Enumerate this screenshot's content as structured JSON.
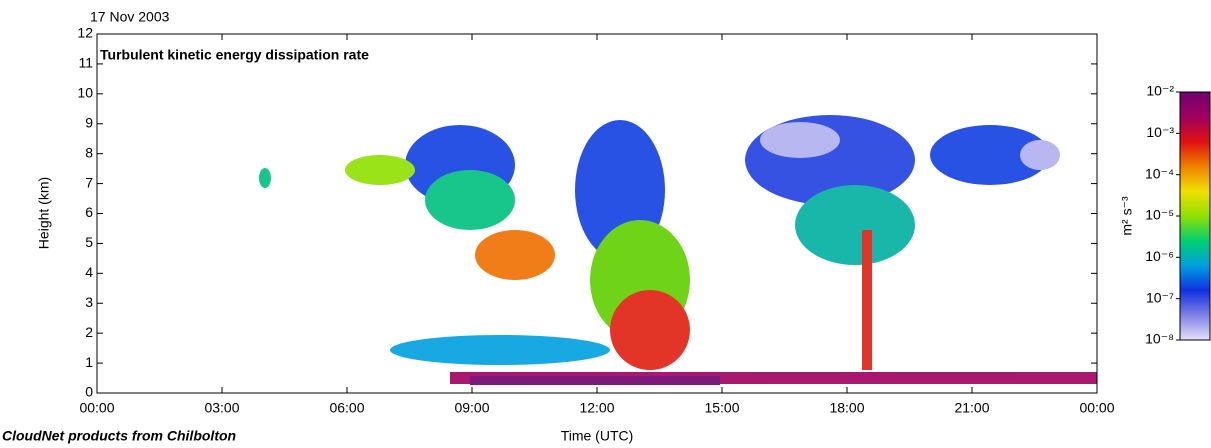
{
  "chart_data": {
    "type": "heatmap",
    "title": "Turbulent kinetic energy dissipation rate",
    "subtitle": "17 Nov 2003",
    "x_label": "Time (UTC)",
    "y_label": "Height (km)",
    "footer": "CloudNet products from Chilbolton",
    "xlim": [
      0,
      24
    ],
    "xticks": [
      {
        "value": 0,
        "label": "00:00"
      },
      {
        "value": 3,
        "label": "03:00"
      },
      {
        "value": 6,
        "label": "06:00"
      },
      {
        "value": 9,
        "label": "09:00"
      },
      {
        "value": 12,
        "label": "12:00"
      },
      {
        "value": 15,
        "label": "15:00"
      },
      {
        "value": 18,
        "label": "18:00"
      },
      {
        "value": 21,
        "label": "21:00"
      },
      {
        "value": 24,
        "label": "00:00"
      }
    ],
    "ylim": [
      0,
      12
    ],
    "yticks": [
      0,
      1,
      2,
      3,
      4,
      5,
      6,
      7,
      8,
      9,
      10,
      11,
      12
    ],
    "colorbar": {
      "label": "m² s⁻³",
      "log_scale": true,
      "lim": [
        1e-08,
        0.01
      ],
      "ticks": [
        {
          "value": 0.01,
          "label": "10⁻²"
        },
        {
          "value": 0.001,
          "label": "10⁻³"
        },
        {
          "value": 0.0001,
          "label": "10⁻⁴"
        },
        {
          "value": 1e-05,
          "label": "10⁻⁵"
        },
        {
          "value": 1e-06,
          "label": "10⁻⁶"
        },
        {
          "value": 1e-07,
          "label": "10⁻⁷"
        },
        {
          "value": 1e-08,
          "label": "10⁻⁸"
        }
      ],
      "colormap": [
        "#e4e0f8",
        "#8080e8",
        "#1030e0",
        "#00a0e0",
        "#00d070",
        "#90e000",
        "#f0e000",
        "#f08000",
        "#e01010",
        "#a00060",
        "#700070"
      ]
    }
  }
}
